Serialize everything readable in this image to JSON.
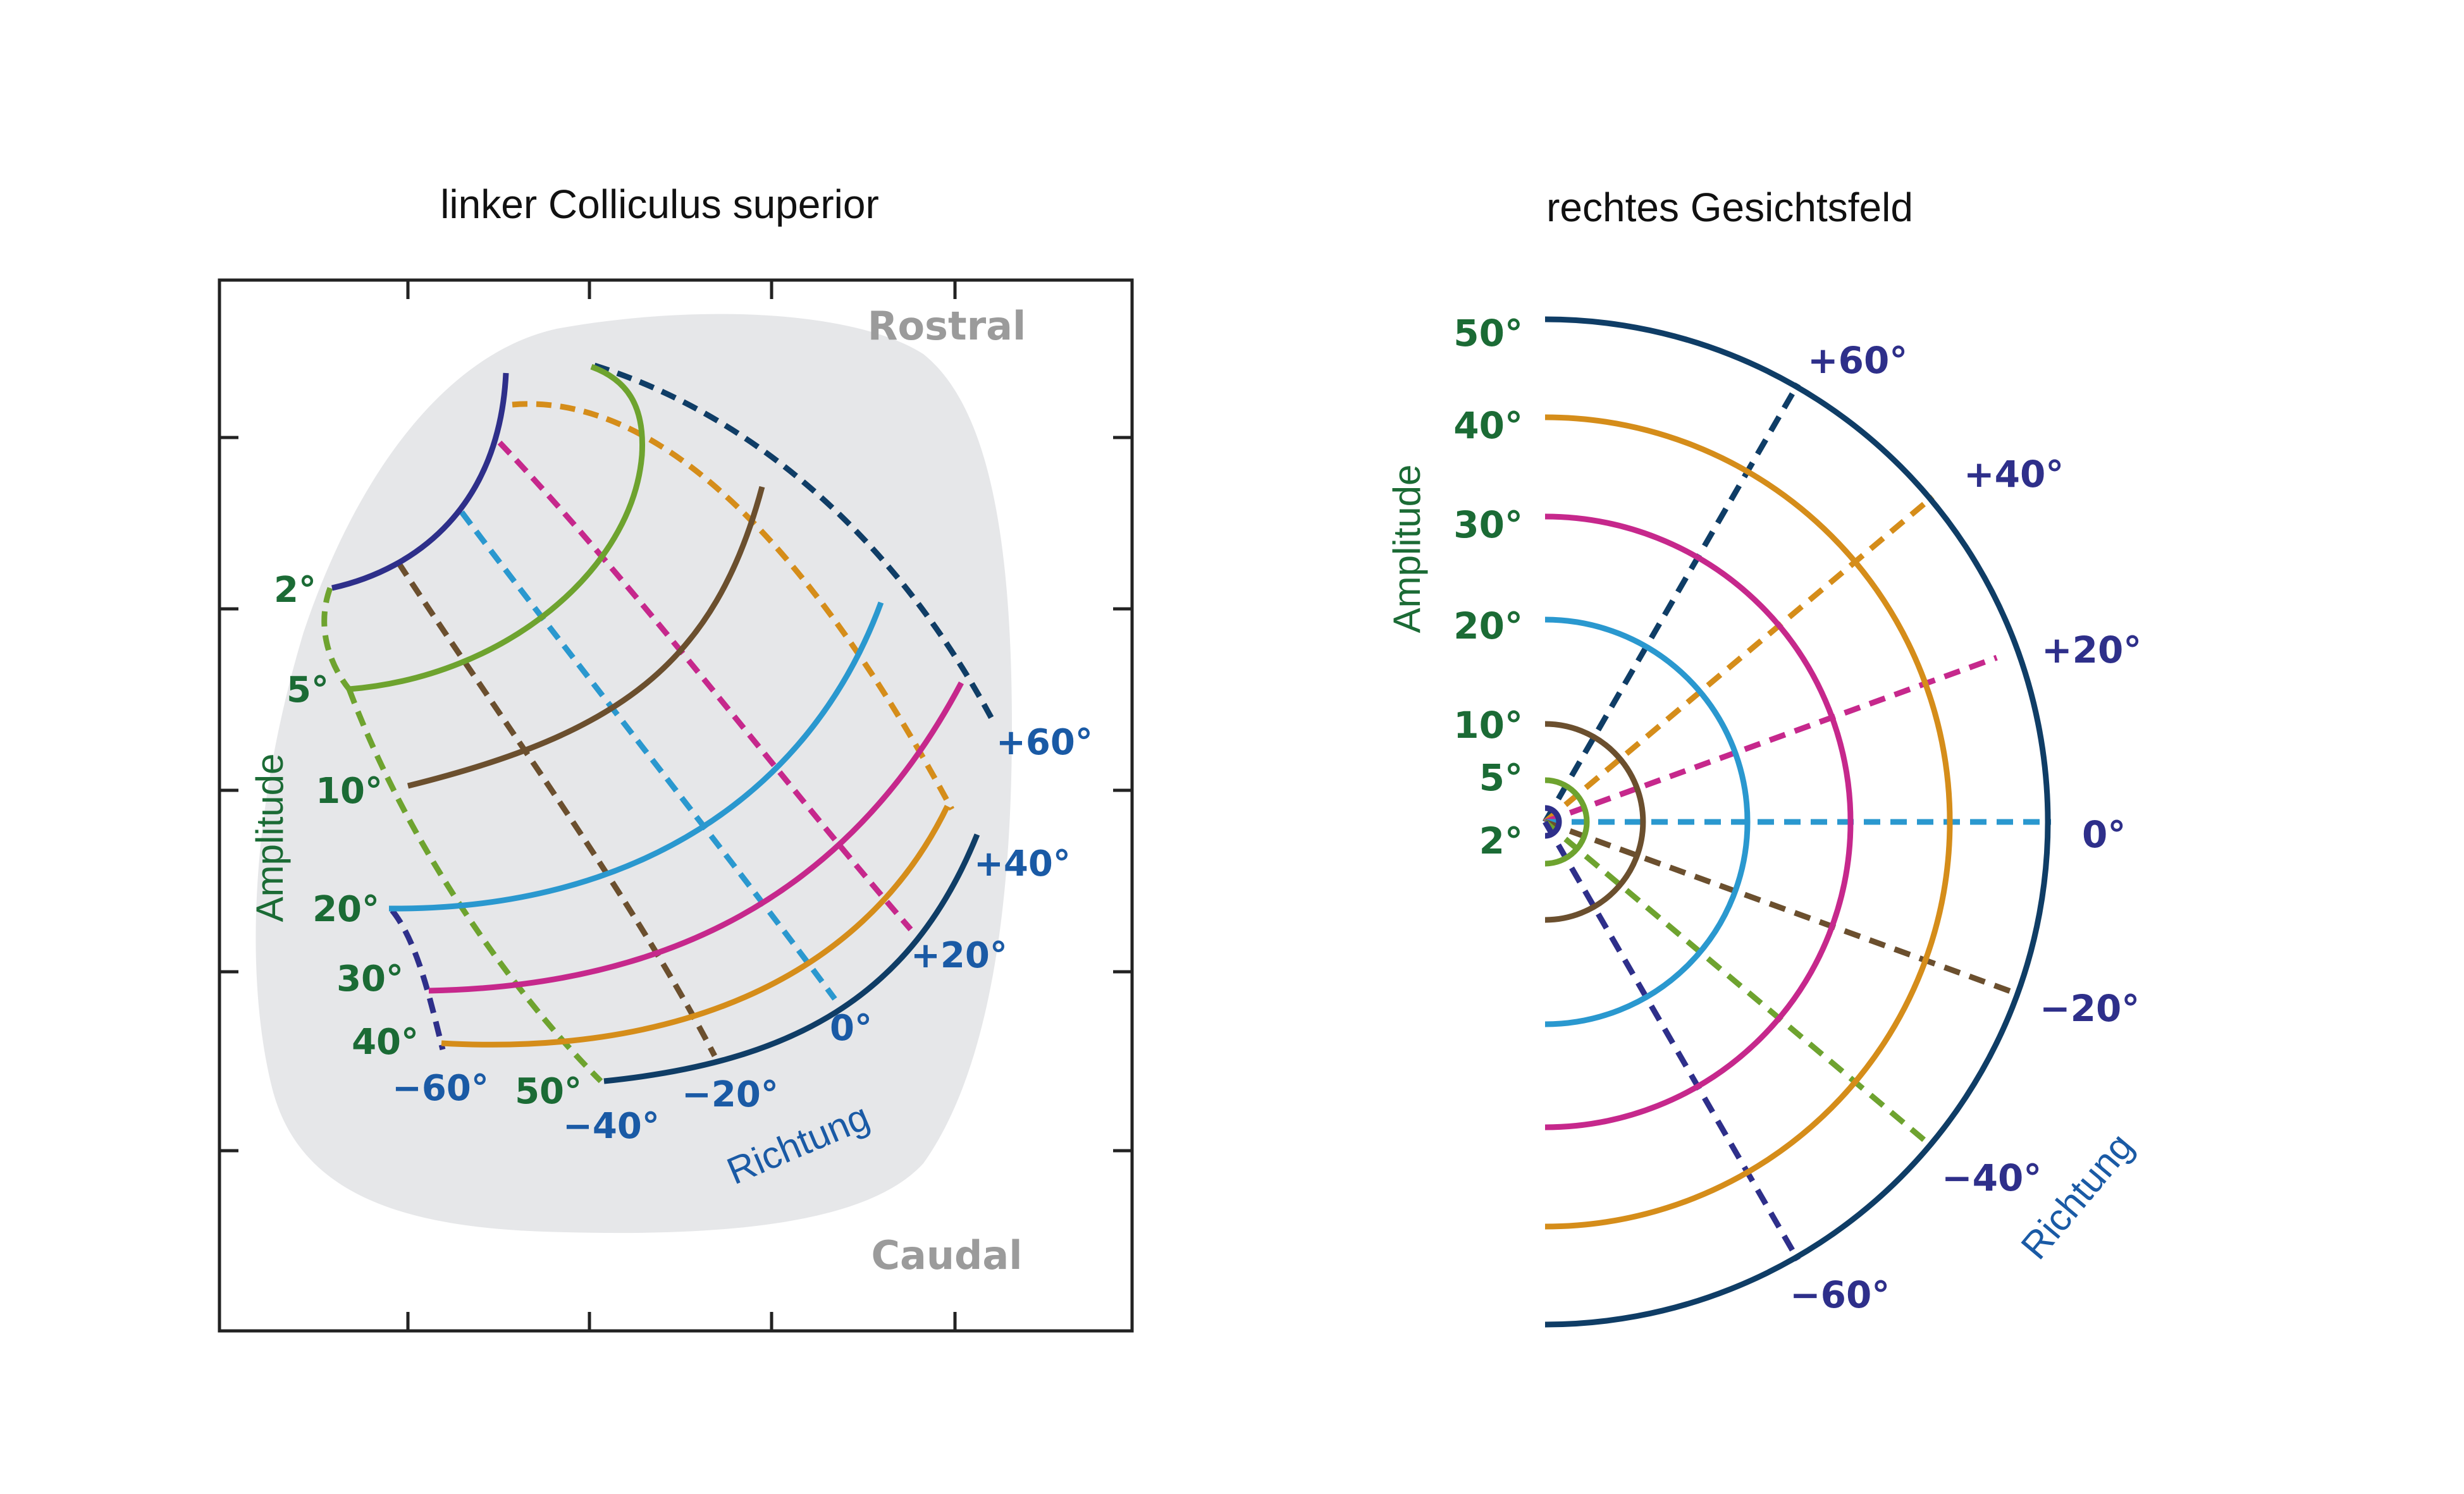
{
  "left_panel": {
    "title": "linker Colliculus superior",
    "rostral": "Rostral",
    "caudal": "Caudal",
    "amplitude_label": "Amplitude",
    "direction_label": "Richtung",
    "amplitude_ticks": [
      "2°",
      "5°",
      "10°",
      "20°",
      "30°",
      "40°",
      "50°"
    ],
    "direction_ticks": [
      "+60°",
      "+40°",
      "+20°",
      "0°",
      "−20°",
      "−40°",
      "−60°"
    ]
  },
  "right_panel": {
    "title": "rechtes Gesichtsfeld",
    "amplitude_label": "Amplitude",
    "direction_label": "Richtung",
    "amplitude_ticks": [
      "50°",
      "40°",
      "30°",
      "20°",
      "10°",
      "5°",
      "2°"
    ],
    "direction_ticks": [
      "+60°",
      "+40°",
      "+20°",
      "0°",
      "−20°",
      "−40°",
      "−60°"
    ]
  },
  "colors": {
    "amplitude_text": "#1b6b35",
    "direction_text_left": "#1a5aa5",
    "direction_text_right": "#2e2f8a",
    "rostral_caudal": "#9b9b9b",
    "blob_fill": "#e6e7e9",
    "series": {
      "2": "#2e2f8a",
      "5": "#6ea32f",
      "10": "#6b4f2e",
      "20": "#2a98cf",
      "30": "#c6288c",
      "40": "#d58d1a",
      "50": "#0f3d66"
    },
    "dir_series": {
      "+60": "#0f3d66",
      "+40": "#d58d1a",
      "+20": "#c6288c",
      "0": "#2a98cf",
      "-20": "#6b4f2e",
      "-40": "#6ea32f",
      "-60": "#2e2f8a"
    }
  }
}
